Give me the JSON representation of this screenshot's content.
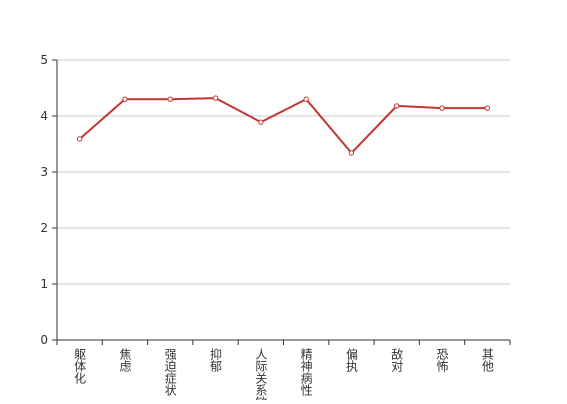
{
  "chart_data": {
    "type": "line",
    "categories": [
      "躯体化",
      "焦虑",
      "强迫症状",
      "抑郁",
      "人际关系敏感",
      "精神病性",
      "偏执",
      "敌对",
      "恐怖",
      "其他"
    ],
    "series": [
      {
        "color": "#c23531",
        "values": [
          3.59,
          4.3,
          4.3,
          4.32,
          3.89,
          4.3,
          3.34,
          4.18,
          4.14,
          4.14
        ]
      }
    ],
    "ylim": [
      0,
      5
    ],
    "yticks": [
      0,
      1,
      2,
      3,
      4,
      5
    ],
    "grid": true
  }
}
